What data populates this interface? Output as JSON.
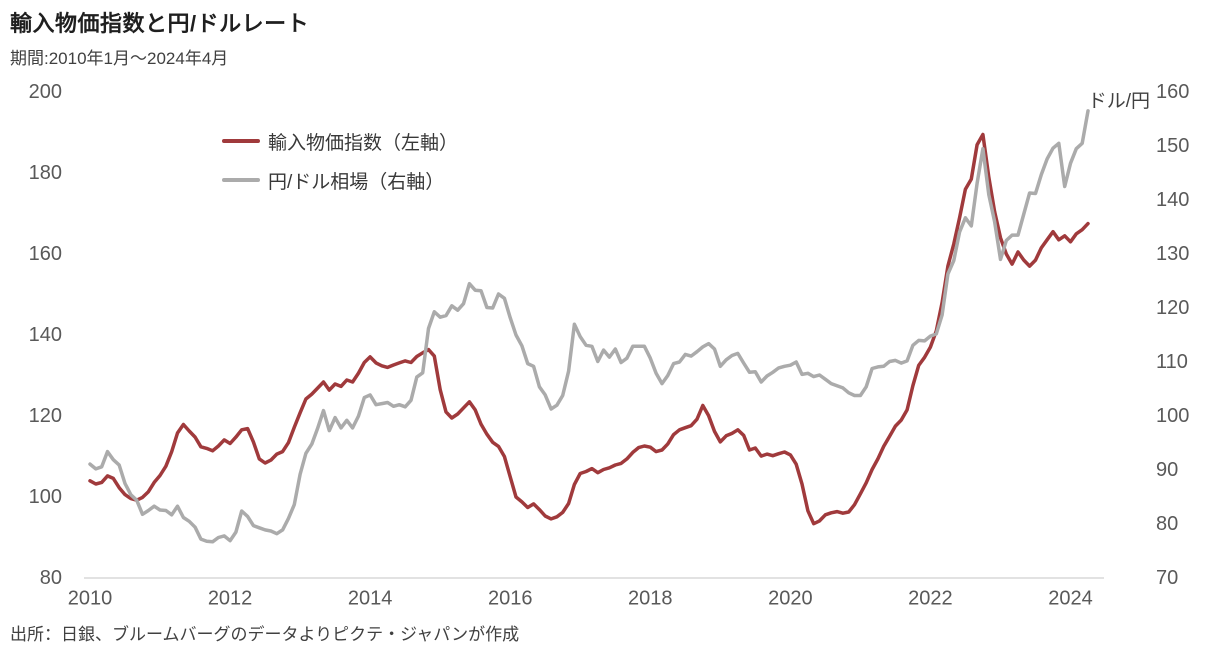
{
  "header": {
    "title": "輸入物価指数と円/ドルレート",
    "period": "期間:2010年1月～2024年4月"
  },
  "footer": {
    "source": "出所：日銀、ブルームバーグのデータよりピクテ・ジャパンが作成"
  },
  "chart_data": {
    "type": "line",
    "title": "輸入物価指数と円/ドルレート",
    "x_start": "2010-01",
    "x_end": "2024-04",
    "x_frequency": "monthly",
    "x_ticks": [
      "2010",
      "2012",
      "2014",
      "2016",
      "2018",
      "2020",
      "2022",
      "2024"
    ],
    "grid": "off",
    "legend_position": "top-left-inside",
    "left_axis": {
      "min": 80,
      "max": 200,
      "ticks": [
        200,
        180,
        160,
        140,
        120,
        100,
        80
      ]
    },
    "right_axis": {
      "min": 70,
      "max": 160,
      "ticks": [
        160,
        150,
        140,
        130,
        120,
        110,
        100,
        90,
        80,
        70
      ],
      "unit_label": "ドル/円"
    },
    "series": [
      {
        "name": "輸入物価指数（左軸）",
        "axis": "left",
        "color": "#A03A3C",
        "values": [
          104.0,
          103.2,
          103.6,
          105.2,
          104.6,
          102.3,
          100.6,
          99.6,
          99.2,
          99.9,
          101.3,
          103.6,
          105.3,
          107.6,
          111.2,
          115.8,
          117.9,
          116.3,
          114.8,
          112.4,
          112.0,
          111.4,
          112.6,
          114.1,
          113.2,
          114.8,
          116.6,
          116.9,
          113.6,
          109.4,
          108.4,
          109.1,
          110.6,
          111.2,
          113.4,
          117.2,
          120.8,
          124.2,
          125.4,
          126.9,
          128.4,
          126.4,
          127.9,
          127.3,
          128.9,
          128.4,
          130.6,
          133.2,
          134.6,
          133.1,
          132.4,
          132.0,
          132.6,
          133.1,
          133.6,
          133.2,
          134.7,
          135.6,
          136.4,
          134.8,
          126.5,
          121.0,
          119.5,
          120.5,
          122.0,
          123.5,
          121.5,
          118.0,
          115.5,
          113.5,
          112.5,
          110.0,
          105.0,
          100.0,
          98.8,
          97.4,
          98.3,
          96.9,
          95.3,
          94.6,
          95.1,
          96.2,
          98.4,
          103.1,
          105.8,
          106.3,
          107.0,
          106.0,
          106.8,
          107.2,
          107.9,
          108.3,
          109.4,
          111.0,
          112.2,
          112.6,
          112.3,
          111.2,
          111.6,
          113.1,
          115.4,
          116.6,
          117.1,
          117.6,
          119.2,
          122.6,
          120.1,
          116.2,
          113.6,
          115.1,
          115.7,
          116.6,
          115.2,
          111.6,
          112.1,
          110.1,
          110.6,
          110.2,
          110.7,
          111.1,
          110.4,
          108.1,
          103.2,
          96.6,
          93.4,
          94.1,
          95.6,
          96.1,
          96.4,
          96.0,
          96.3,
          98.1,
          100.8,
          103.5,
          106.8,
          109.4,
          112.5,
          115.0,
          117.5,
          119.0,
          121.5,
          127.5,
          132.5,
          134.5,
          137.0,
          141.0,
          148.0,
          157.0,
          162.5,
          169.0,
          176.0,
          178.5,
          187.0,
          189.5,
          179.0,
          170.5,
          164.0,
          160.0,
          157.5,
          160.5,
          158.5,
          157.0,
          158.5,
          161.5,
          163.5,
          165.5,
          163.5,
          164.5,
          163.0,
          165.0,
          166.0,
          167.5
        ]
      },
      {
        "name": "円/ドル相場（右軸）",
        "axis": "right",
        "color": "#ABABAB",
        "values": [
          91.1,
          90.2,
          90.6,
          93.4,
          91.9,
          90.9,
          87.5,
          85.4,
          84.4,
          81.8,
          82.5,
          83.3,
          82.6,
          82.5,
          81.7,
          83.3,
          81.2,
          80.5,
          79.4,
          77.2,
          76.8,
          76.7,
          77.5,
          77.8,
          76.9,
          78.5,
          82.4,
          81.4,
          79.7,
          79.3,
          78.9,
          78.7,
          78.2,
          78.9,
          81.0,
          83.6,
          89.2,
          93.1,
          94.8,
          97.7,
          101.0,
          97.3,
          99.7,
          97.8,
          99.2,
          97.8,
          100.0,
          103.4,
          103.9,
          102.1,
          102.3,
          102.5,
          101.8,
          102.1,
          101.7,
          102.9,
          107.2,
          108.0,
          116.2,
          119.3,
          118.3,
          118.6,
          120.4,
          119.6,
          120.8,
          124.5,
          123.3,
          123.2,
          120.1,
          120.0,
          122.6,
          121.8,
          118.2,
          115.0,
          113.0,
          109.7,
          109.2,
          105.4,
          103.9,
          101.3,
          102.0,
          103.8,
          108.3,
          117.0,
          114.7,
          113.1,
          112.9,
          110.1,
          112.2,
          110.9,
          112.4,
          109.9,
          110.7,
          112.9,
          112.9,
          112.9,
          110.7,
          107.9,
          106.0,
          107.5,
          109.7,
          110.0,
          111.4,
          111.1,
          111.9,
          112.8,
          113.4,
          112.4,
          109.2,
          110.4,
          111.2,
          111.6,
          109.8,
          108.1,
          108.2,
          106.3,
          107.4,
          108.1,
          108.9,
          109.2,
          109.4,
          110.0,
          107.7,
          107.9,
          107.3,
          107.6,
          106.8,
          106.0,
          105.6,
          105.2,
          104.3,
          103.8,
          103.8,
          105.4,
          108.8,
          109.1,
          109.2,
          110.1,
          110.3,
          109.8,
          110.2,
          113.1,
          114.0,
          113.9,
          114.8,
          115.2,
          118.7,
          126.3,
          128.8,
          134.1,
          136.7,
          135.2,
          143.1,
          149.5,
          141.0,
          136.0,
          129.0,
          132.5,
          133.5,
          133.5,
          137.4,
          141.3,
          141.2,
          144.7,
          147.6,
          149.6,
          150.5,
          142.5,
          146.8,
          149.5,
          150.5,
          156.5
        ]
      }
    ]
  }
}
